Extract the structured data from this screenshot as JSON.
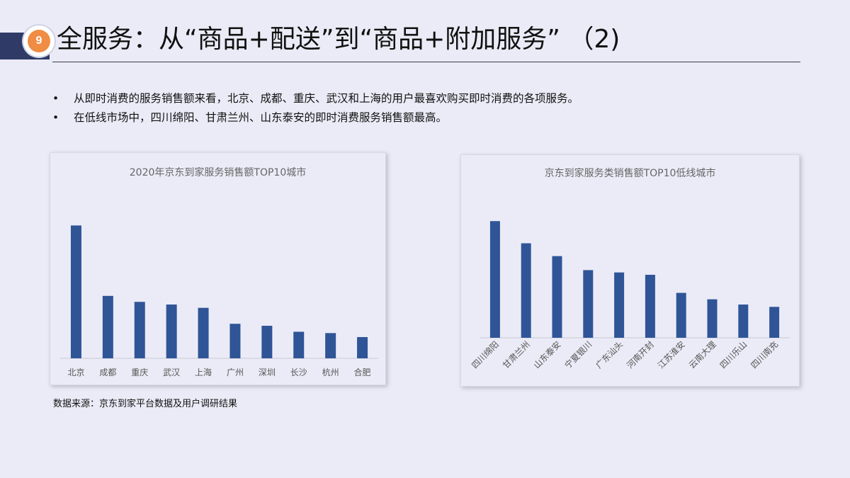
{
  "slide": {
    "number": "9",
    "title": "全服务：从“商品+配送”到“商品+附加服务” （2)",
    "bullets": [
      "从即时消费的服务销售额来看，北京、成都、重庆、武汉和上海的用户最喜欢购买即时消费的各项服务。",
      "在低线市场中，四川绵阳、甘肃兰州、山东泰安的即时消费服务销售额最高。"
    ],
    "bullet_symbol": "•",
    "source": "数据来源：京东到家平台数据及用户调研结果"
  },
  "colors": {
    "bar": "#2f5597",
    "badge": "#f08c43",
    "corner": "#2f3a67",
    "background": "#ebebf7"
  },
  "chart_data": [
    {
      "type": "bar",
      "title": "2020年京东到家服务销售额TOP10城市",
      "categories": [
        "北京",
        "成都",
        "重庆",
        "武汉",
        "上海",
        "广州",
        "深圳",
        "长沙",
        "杭州",
        "合肥"
      ],
      "values": [
        100,
        47,
        42.5,
        40.5,
        38,
        26,
        24.5,
        20,
        19,
        16
      ],
      "ylim": [
        0,
        105
      ],
      "xlabel": "",
      "ylabel": "",
      "grid": false,
      "label_rotation": 0
    },
    {
      "type": "bar",
      "title": "京东到家服务类销售额TOP10低线城市",
      "categories": [
        "四川绵阳",
        "甘肃兰州",
        "山东泰安",
        "宁夏银川",
        "广东汕头",
        "河南开封",
        "江苏淮安",
        "云南大理",
        "四川乐山",
        "四川南充"
      ],
      "values": [
        100,
        81,
        70,
        58,
        56,
        54,
        38.5,
        33,
        28.5,
        26.5
      ],
      "ylim": [
        0,
        105
      ],
      "xlabel": "",
      "ylabel": "",
      "grid": false,
      "label_rotation": -45
    }
  ]
}
